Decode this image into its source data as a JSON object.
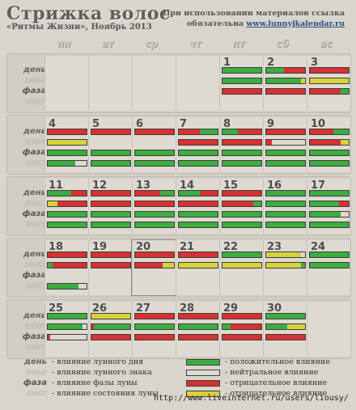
{
  "header": {
    "title": "Стрижка волос",
    "subtitle": "«Ритмы Жизни», Ноябрь 2013",
    "notice_line1": "При использовании материалов ссылка",
    "notice_line2_prefix": "обязательна",
    "notice_link": "www.lunnyjkalendar.ru"
  },
  "weekdays": [
    "пн",
    "вт",
    "ср",
    "чт",
    "пт",
    "сб",
    "вс"
  ],
  "row_labels": [
    "день",
    "знак",
    "фаза",
    "сост"
  ],
  "colors": {
    "green": "#3cae3f",
    "red": "#d83131",
    "yellow": "#d8d23a",
    "empty": "#dedad2"
  },
  "today": 20,
  "weeks": [
    [
      null,
      null,
      null,
      null,
      {
        "day": "1",
        "bars": [
          [
            [
              "g",
              1
            ]
          ],
          [
            [
              "g",
              1
            ]
          ],
          [
            [
              "r",
              1
            ]
          ],
          []
        ]
      },
      {
        "day": "2",
        "bars": [
          [
            [
              "g",
              0.45
            ],
            [
              "r",
              0.55
            ]
          ],
          [
            [
              "g",
              0.9
            ],
            [
              "y",
              0.1
            ]
          ],
          [
            [
              "r",
              1
            ]
          ],
          []
        ]
      },
      {
        "day": "3",
        "bars": [
          [
            [
              "r",
              1
            ]
          ],
          [
            [
              "y",
              1
            ]
          ],
          [
            [
              "r",
              0.8
            ],
            [
              "g",
              0.2
            ]
          ],
          []
        ]
      }
    ],
    [
      {
        "day": "4",
        "bars": [
          [
            [
              "r",
              1
            ]
          ],
          [
            [
              "y",
              1
            ]
          ],
          [
            [
              "g",
              1
            ]
          ],
          [
            [
              "g",
              0.7
            ]
          ]
        ]
      },
      {
        "day": "5",
        "bars": [
          [
            [
              "r",
              1
            ]
          ],
          [],
          [
            [
              "g",
              1
            ]
          ],
          [
            [
              "g",
              1
            ]
          ]
        ]
      },
      {
        "day": "6",
        "bars": [
          [
            [
              "r",
              1
            ]
          ],
          [],
          [
            [
              "g",
              1
            ]
          ],
          [
            [
              "g",
              1
            ]
          ]
        ]
      },
      {
        "day": "7",
        "bars": [
          [
            [
              "r",
              0.55
            ],
            [
              "g",
              0.45
            ]
          ],
          [
            [
              "r",
              1
            ]
          ],
          [
            [
              "g",
              1
            ]
          ],
          [
            [
              "g",
              1
            ]
          ]
        ]
      },
      {
        "day": "8",
        "bars": [
          [
            [
              "g",
              0.4
            ],
            [
              "r",
              0.6
            ]
          ],
          [
            [
              "r",
              1
            ]
          ],
          [
            [
              "g",
              1
            ]
          ],
          [
            [
              "g",
              1
            ]
          ]
        ]
      },
      {
        "day": "9",
        "bars": [
          [
            [
              "r",
              1
            ]
          ],
          [
            [
              "r",
              0.15
            ]
          ],
          [
            [
              "g",
              1
            ]
          ],
          [
            [
              "g",
              1
            ]
          ]
        ]
      },
      {
        "day": "10",
        "bars": [
          [
            [
              "r",
              0.6
            ],
            [
              "g",
              0.4
            ]
          ],
          [
            [
              "r",
              0.8
            ],
            [
              "y",
              0.2
            ]
          ],
          [
            [
              "g",
              1
            ]
          ],
          [
            [
              "g",
              1
            ]
          ]
        ]
      }
    ],
    [
      {
        "day": "11",
        "bars": [
          [
            [
              "g",
              0.6
            ],
            [
              "r",
              0.4
            ]
          ],
          [
            [
              "y",
              0.25
            ],
            [
              "r",
              0.75
            ]
          ],
          [
            [
              "g",
              1
            ]
          ],
          [
            [
              "g",
              1
            ]
          ]
        ]
      },
      {
        "day": "12",
        "bars": [
          [
            [
              "r",
              1
            ]
          ],
          [
            [
              "r",
              1
            ]
          ],
          [
            [
              "g",
              1
            ]
          ],
          [
            [
              "g",
              1
            ]
          ]
        ]
      },
      {
        "day": "13",
        "bars": [
          [
            [
              "r",
              0.65
            ],
            [
              "g",
              0.35
            ]
          ],
          [
            [
              "r",
              1
            ]
          ],
          [
            [
              "g",
              1
            ]
          ],
          [
            [
              "g",
              1
            ]
          ]
        ]
      },
      {
        "day": "14",
        "bars": [
          [
            [
              "g",
              0.55
            ],
            [
              "r",
              0.45
            ]
          ],
          [
            [
              "r",
              1
            ]
          ],
          [
            [
              "g",
              1
            ]
          ],
          [
            [
              "g",
              1
            ]
          ]
        ]
      },
      {
        "day": "15",
        "bars": [
          [
            [
              "r",
              1
            ]
          ],
          [
            [
              "r",
              0.8
            ],
            [
              "g",
              0.2
            ]
          ],
          [
            [
              "g",
              1
            ]
          ],
          [
            [
              "g",
              1
            ]
          ]
        ]
      },
      {
        "day": "16",
        "bars": [
          [
            [
              "g",
              1
            ]
          ],
          [
            [
              "g",
              1
            ]
          ],
          [
            [
              "g",
              1
            ]
          ],
          [
            [
              "g",
              1
            ]
          ]
        ]
      },
      {
        "day": "17",
        "bars": [
          [
            [
              "g",
              1
            ]
          ],
          [
            [
              "g",
              0.75
            ],
            [
              "r",
              0.25
            ]
          ],
          [
            [
              "g",
              0.8
            ]
          ],
          [
            [
              "g",
              1
            ]
          ]
        ]
      }
    ],
    [
      {
        "day": "18",
        "bars": [
          [
            [
              "r",
              1
            ]
          ],
          [
            [
              "g",
              0.12
            ],
            [
              "r",
              0.88
            ]
          ],
          [],
          [
            [
              "g",
              0.8
            ]
          ]
        ]
      },
      {
        "day": "19",
        "bars": [
          [
            [
              "r",
              1
            ]
          ],
          [
            [
              "r",
              1
            ]
          ],
          [],
          []
        ]
      },
      {
        "day": "20",
        "bars": [
          [
            [
              "r",
              1
            ]
          ],
          [
            [
              "r",
              0.7
            ],
            [
              "y",
              0.3
            ]
          ],
          [],
          []
        ]
      },
      {
        "day": "21",
        "bars": [
          [
            [
              "r",
              1
            ]
          ],
          [
            [
              "y",
              1
            ]
          ],
          [],
          []
        ]
      },
      {
        "day": "22",
        "bars": [
          [
            [
              "g",
              1
            ]
          ],
          [
            [
              "y",
              1
            ]
          ],
          [],
          []
        ]
      },
      {
        "day": "23",
        "bars": [
          [
            [
              "y",
              0.9
            ]
          ],
          [
            [
              "y",
              0.9
            ],
            [
              "g",
              0.1
            ]
          ],
          [],
          []
        ]
      },
      {
        "day": "24",
        "bars": [
          [
            [
              "g",
              1
            ]
          ],
          [
            [
              "g",
              1
            ]
          ],
          [],
          []
        ]
      }
    ],
    [
      {
        "day": "25",
        "bars": [
          [
            [
              "g",
              1
            ]
          ],
          [
            [
              "g",
              0.9
            ]
          ],
          [
            [
              "r",
              0.06
            ]
          ],
          []
        ]
      },
      {
        "day": "26",
        "bars": [
          [
            [
              "y",
              1
            ]
          ],
          [
            [
              "r",
              0.06
            ],
            [
              "g",
              0.94
            ]
          ],
          [
            [
              "r",
              1
            ]
          ],
          []
        ]
      },
      {
        "day": "27",
        "bars": [
          [
            [
              "r",
              1
            ]
          ],
          [
            [
              "g",
              1
            ]
          ],
          [
            [
              "r",
              1
            ]
          ],
          []
        ]
      },
      {
        "day": "28",
        "bars": [
          [
            [
              "r",
              1
            ]
          ],
          [
            [
              "g",
              1
            ]
          ],
          [
            [
              "r",
              1
            ]
          ],
          []
        ]
      },
      {
        "day": "29",
        "bars": [
          [
            [
              "r",
              1
            ]
          ],
          [
            [
              "g",
              0.2
            ],
            [
              "r",
              0.8
            ]
          ],
          [
            [
              "r",
              1
            ]
          ],
          []
        ]
      },
      {
        "day": "30",
        "bars": [
          [
            [
              "g",
              1
            ]
          ],
          [
            [
              "g",
              0.55
            ],
            [
              "y",
              0.45
            ]
          ],
          [
            [
              "r",
              1
            ]
          ],
          []
        ]
      },
      null
    ]
  ],
  "legend": {
    "items": [
      {
        "label": "день",
        "text": "- влияние лунного дня"
      },
      {
        "label": "знак",
        "text": "- влияние лунного знака"
      },
      {
        "label": "фаза",
        "text": "- влияние фазы луны"
      },
      {
        "label": "сост",
        "text": "- влияние состояния луны"
      }
    ],
    "swatches": [
      {
        "color": "green",
        "text": "- положительное влияние"
      },
      {
        "color": "empty",
        "text": "- нейтральное влияние"
      },
      {
        "color": "red",
        "text": "- отрицательное влияние"
      },
      {
        "color": "yellow",
        "text": "- отрицательное влияние"
      }
    ]
  },
  "watermark": "http://www.liveinternet.ru/users/liousy/"
}
